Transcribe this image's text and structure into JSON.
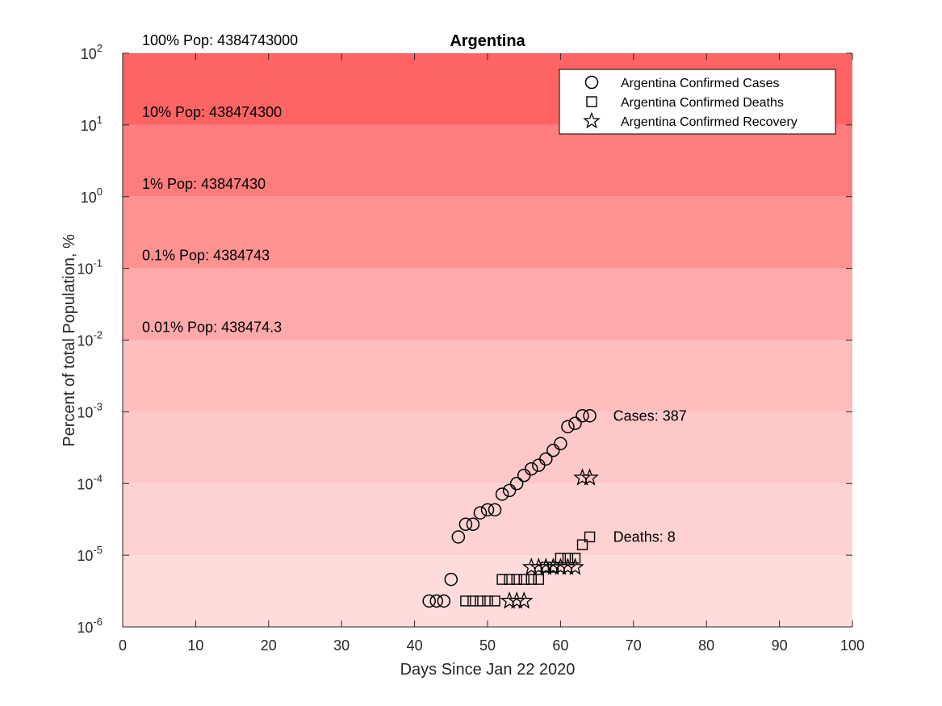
{
  "chart_data": {
    "type": "scatter",
    "title": "Argentina",
    "xlabel": "Days Since Jan 22 2020",
    "ylabel": "Percent of total Population, %",
    "xlim": [
      0,
      100
    ],
    "ylim": [
      1e-06,
      100
    ],
    "yscale": "log",
    "xticks": [
      "0",
      "10",
      "20",
      "30",
      "40",
      "50",
      "60",
      "70",
      "80",
      "90",
      "100"
    ],
    "yticks": [
      {
        "base": "10",
        "exp": "-6"
      },
      {
        "base": "10",
        "exp": "-5"
      },
      {
        "base": "10",
        "exp": "-4"
      },
      {
        "base": "10",
        "exp": "-3"
      },
      {
        "base": "10",
        "exp": "-2"
      },
      {
        "base": "10",
        "exp": "-1"
      },
      {
        "base": "10",
        "exp": "0"
      },
      {
        "base": "10",
        "exp": "1"
      },
      {
        "base": "10",
        "exp": "2"
      }
    ],
    "population_bands": [
      {
        "label": "100% Pop: 4384743000",
        "lo": 10,
        "hi": 100,
        "color": "#ff6464"
      },
      {
        "label": "10% Pop: 438474300",
        "lo": 1,
        "hi": 10,
        "color": "#ff7c7c"
      },
      {
        "label": "1% Pop: 43847430",
        "lo": 0.1,
        "hi": 1,
        "color": "#ff9393"
      },
      {
        "label": "0.1% Pop: 4384743",
        "lo": 0.01,
        "hi": 0.1,
        "color": "#ffaaaa"
      },
      {
        "label": "0.01% Pop: 438474.3",
        "lo": 0.001,
        "hi": 0.01,
        "color": "#ffbebe"
      },
      {
        "label": "",
        "lo": 0.0001,
        "hi": 0.001,
        "color": "#ffc8c8"
      },
      {
        "label": "",
        "lo": 1e-05,
        "hi": 0.0001,
        "color": "#ffd2d2"
      },
      {
        "label": "",
        "lo": 1e-06,
        "hi": 1e-05,
        "color": "#ffdcdc"
      }
    ],
    "series": [
      {
        "name": "Argentina Confirmed Cases",
        "marker": "circle",
        "x": [
          42,
          43,
          44,
          45,
          46,
          47,
          48,
          49,
          50,
          51,
          52,
          53,
          54,
          55,
          56,
          57,
          58,
          59,
          60,
          61,
          62,
          63,
          64
        ],
        "y": [
          2.3e-06,
          2.3e-06,
          2.3e-06,
          4.6e-06,
          1.8e-05,
          2.7e-05,
          2.7e-05,
          3.9e-05,
          4.3e-05,
          4.3e-05,
          7.1e-05,
          8e-05,
          0.0001,
          0.00013,
          0.00016,
          0.00018,
          0.00022,
          0.00029,
          0.00036,
          0.00062,
          0.00069,
          0.00088,
          0.00088
        ]
      },
      {
        "name": "Argentina Confirmed Deaths",
        "marker": "square",
        "x": [
          47,
          48,
          49,
          50,
          51,
          52,
          53,
          54,
          55,
          56,
          57,
          58,
          59,
          60,
          61,
          62,
          63,
          64
        ],
        "y": [
          2.3e-06,
          2.3e-06,
          2.3e-06,
          2.3e-06,
          2.3e-06,
          4.6e-06,
          4.6e-06,
          4.6e-06,
          4.6e-06,
          4.6e-06,
          4.6e-06,
          6.8e-06,
          6.8e-06,
          9.1e-06,
          9.1e-06,
          9.1e-06,
          1.4e-05,
          1.8e-05
        ]
      },
      {
        "name": "Argentina Confirmed Recovery",
        "marker": "star",
        "x": [
          53,
          54,
          55,
          56,
          57,
          58,
          59,
          60,
          61,
          62,
          63,
          64
        ],
        "y": [
          2.3e-06,
          2.3e-06,
          2.3e-06,
          6.8e-06,
          6.8e-06,
          6.8e-06,
          6.8e-06,
          6.8e-06,
          6.8e-06,
          6.8e-06,
          0.00012,
          0.00012
        ]
      }
    ],
    "annotations": [
      {
        "text": "Cases: 387",
        "x": 67,
        "y": 0.00088
      },
      {
        "text": "Deaths: 8",
        "x": 67,
        "y": 1.8e-05
      }
    ],
    "legend": {
      "location": "top-right"
    },
    "grid": false
  }
}
